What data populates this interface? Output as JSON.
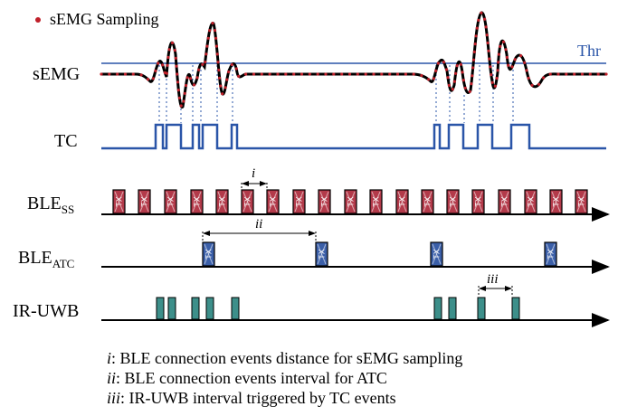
{
  "legend": {
    "sampling": "sEMG Sampling"
  },
  "threshold": {
    "label": "Thr",
    "color": "#2a55a8"
  },
  "rows": {
    "semg": {
      "label": "sEMG"
    },
    "tc": {
      "label": "TC"
    },
    "ble_ss": {
      "label": "BLE",
      "sub": "SS",
      "slot_text": "TX",
      "color": "#b33a4a"
    },
    "ble_atc": {
      "label": "BLE",
      "sub": "ATC",
      "slot_text": "TX",
      "color": "#3b5fa8"
    },
    "ir_uwb": {
      "label": "IR-UWB",
      "color": "#3d8f8a"
    }
  },
  "markers": {
    "i": "i",
    "ii": "ii",
    "iii": "iii"
  },
  "notes": [
    {
      "key": "i",
      "text": ": BLE connection events distance for sEMG sampling"
    },
    {
      "key": "ii",
      "text": ": BLE connection events interval for ATC"
    },
    {
      "key": "iii",
      "text": ": IR-UWB interval triggered by TC events"
    }
  ],
  "colors": {
    "signal": "#000000",
    "samples": "#c0202a",
    "tc_wave": "#2a55a8",
    "guide": "#2a55a8"
  }
}
